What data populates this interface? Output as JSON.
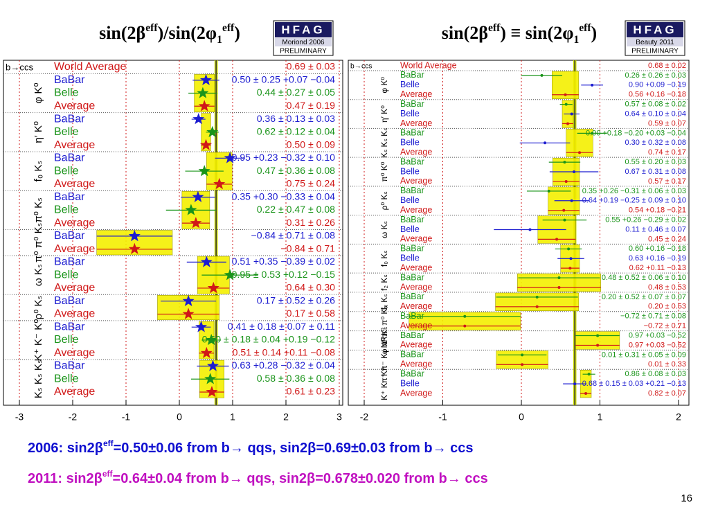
{
  "chart_data": [
    {
      "type": "forest",
      "title": [
        {
          "text": "sin(2β"
        },
        {
          "text": "eff",
          "sup": true
        },
        {
          "text": ")/sin(2φ"
        },
        {
          "text": "1",
          "sub": true
        },
        {
          "text": "eff",
          "sup": true
        },
        {
          "text": ")"
        }
      ],
      "badge": [
        "HFAG",
        "Moriond 2006",
        "PRELIMINARY"
      ],
      "decay_label": "b→ccs",
      "xlim": [
        -3,
        3
      ],
      "xticks": [
        -3,
        -2,
        -1,
        0,
        1,
        2,
        3
      ],
      "colors": {
        "BaBar": "#1c1cd0",
        "Belle": "#1a941a",
        "Average": "#d01818",
        "World Average": "#d01818"
      },
      "world_average": {
        "name": "World Average",
        "value": 0.69,
        "error": 0.03,
        "value_label": "0.69 ± 0.03"
      },
      "groups": [
        {
          "name": "φ K⁰",
          "rows": [
            {
              "name": "BaBar",
              "value": 0.5,
              "error": 0.25,
              "value_label": "0.50 ± 0.25 +0.07 −0.04"
            },
            {
              "name": "Belle",
              "value": 0.44,
              "error": 0.27,
              "value_label": "0.44 ± 0.27 ± 0.05"
            },
            {
              "name": "Average",
              "value": 0.47,
              "error": 0.19,
              "value_label": "0.47 ± 0.19"
            }
          ]
        },
        {
          "name": "η′ K⁰",
          "rows": [
            {
              "name": "BaBar",
              "value": 0.36,
              "error": 0.13,
              "value_label": "0.36 ± 0.13 ± 0.03"
            },
            {
              "name": "Belle",
              "value": 0.62,
              "error": 0.12,
              "value_label": "0.62 ± 0.12 ± 0.04"
            },
            {
              "name": "Average",
              "value": 0.5,
              "error": 0.09,
              "value_label": "0.50 ± 0.09"
            }
          ]
        },
        {
          "name": "f₀ Kₛ",
          "rows": [
            {
              "name": "BaBar",
              "value": 0.95,
              "error": 0.28,
              "value_label": "0.95 +0.23 −0.32 ± 0.10"
            },
            {
              "name": "Belle",
              "value": 0.47,
              "error": 0.36,
              "value_label": "0.47 ± 0.36 ± 0.08"
            },
            {
              "name": "Average",
              "value": 0.75,
              "error": 0.24,
              "value_label": "0.75 ± 0.24"
            }
          ]
        },
        {
          "name": "π⁰ Kₛ",
          "rows": [
            {
              "name": "BaBar",
              "value": 0.35,
              "error": 0.32,
              "value_label": "0.35 +0.30 −0.33 ± 0.04"
            },
            {
              "name": "Belle",
              "value": 0.22,
              "error": 0.47,
              "value_label": "0.22 ± 0.47 ± 0.08"
            },
            {
              "name": "Average",
              "value": 0.31,
              "error": 0.26,
              "value_label": "0.31 ± 0.26"
            }
          ]
        },
        {
          "name": "π⁰ π⁰ Kₛ",
          "rows": [
            {
              "name": "BaBar",
              "value": -0.84,
              "error": 0.71,
              "value_label": "−0.84 ± 0.71 ± 0.08"
            },
            {
              "name": "Average",
              "value": -0.84,
              "error": 0.71,
              "value_label": "−0.84 ± 0.71"
            }
          ]
        },
        {
          "name": "ω Kₛ",
          "rows": [
            {
              "name": "BaBar",
              "value": 0.51,
              "error": 0.37,
              "value_label": "0.51 +0.35 −0.39 ± 0.02"
            },
            {
              "name": "Belle",
              "value": 0.95,
              "error": 0.53,
              "value_label": "0.95 ± 0.53 +0.12 −0.15"
            },
            {
              "name": "Average",
              "value": 0.64,
              "error": 0.3,
              "value_label": "0.64 ± 0.30"
            }
          ]
        },
        {
          "name": "ρ⁰ Kₛ",
          "rows": [
            {
              "name": "BaBar",
              "value": 0.17,
              "error": 0.52,
              "value_label": "0.17 ± 0.52 ± 0.26"
            },
            {
              "name": "Average",
              "value": 0.17,
              "error": 0.58,
              "value_label": "0.17 ± 0.58"
            }
          ]
        },
        {
          "name": "K⁺ K⁻ K⁰",
          "rows": [
            {
              "name": "BaBar",
              "value": 0.41,
              "error": 0.18,
              "value_label": "0.41 ± 0.18 ± 0.07 ± 0.11"
            },
            {
              "name": "Belle",
              "value": 0.6,
              "error": 0.18,
              "value_label": "0.60 ± 0.18 ± 0.04 +0.19 −0.12"
            },
            {
              "name": "Average",
              "value": 0.51,
              "error": 0.14,
              "value_label": "0.51 ± 0.14 +0.11 −0.08"
            }
          ]
        },
        {
          "name": "Kₛ Kₛ Kₛ",
          "rows": [
            {
              "name": "BaBar",
              "value": 0.63,
              "error": 0.3,
              "value_label": "0.63 +0.28 −0.32 ± 0.04"
            },
            {
              "name": "Belle",
              "value": 0.58,
              "error": 0.36,
              "value_label": "0.58 ± 0.36 ± 0.08"
            },
            {
              "name": "Average",
              "value": 0.61,
              "error": 0.23,
              "value_label": "0.61 ± 0.23"
            }
          ]
        }
      ]
    },
    {
      "type": "forest",
      "title": [
        {
          "text": "sin(2β"
        },
        {
          "text": "eff",
          "sup": true
        },
        {
          "text": ") ≡ sin(2φ"
        },
        {
          "text": "1",
          "sub": true
        },
        {
          "text": "eff",
          "sup": true
        },
        {
          "text": ")"
        }
      ],
      "badge": [
        "HFAG",
        "Beauty 2011",
        "PRELIMINARY"
      ],
      "decay_label": "b→ccs",
      "xlim": [
        -2,
        2
      ],
      "xticks": [
        -2,
        -1,
        0,
        1,
        2
      ],
      "colors": {
        "BaBar": "#1a941a",
        "Belle": "#1c1cd0",
        "Average": "#d01818",
        "World Average": "#d01818"
      },
      "world_average": {
        "name": "World Average",
        "value": 0.68,
        "error": 0.02,
        "value_label": "0.68 ± 0.02"
      },
      "groups": [
        {
          "name": "φ K⁰",
          "rows": [
            {
              "name": "BaBar",
              "value": 0.26,
              "error": 0.26,
              "value_label": "0.26 ± 0.26 ± 0.03"
            },
            {
              "name": "Belle",
              "value": 0.9,
              "error": 0.14,
              "value_label": "0.90 +0.09 −0.19"
            },
            {
              "name": "Average",
              "value": 0.56,
              "error": 0.17,
              "value_label": "0.56 +0.16 −0.18"
            }
          ]
        },
        {
          "name": "η′ K⁰",
          "rows": [
            {
              "name": "BaBar",
              "value": 0.57,
              "error": 0.08,
              "value_label": "0.57 ± 0.08 ± 0.02"
            },
            {
              "name": "Belle",
              "value": 0.64,
              "error": 0.1,
              "value_label": "0.64 ± 0.10 ± 0.04"
            },
            {
              "name": "Average",
              "value": 0.59,
              "error": 0.07,
              "value_label": "0.59 ± 0.07"
            }
          ]
        },
        {
          "name": "Kₛ Kₛ Kₛ",
          "rows": [
            {
              "name": "BaBar",
              "value": 0.9,
              "error": 0.19,
              "value_label": "0.90 +0.18 −0.20 +0.03 −0.04"
            },
            {
              "name": "Belle",
              "value": 0.3,
              "error": 0.32,
              "value_label": "0.30 ± 0.32 ± 0.08"
            },
            {
              "name": "Average",
              "value": 0.74,
              "error": 0.17,
              "value_label": "0.74 ± 0.17"
            }
          ]
        },
        {
          "name": "π⁰ K⁰",
          "rows": [
            {
              "name": "BaBar",
              "value": 0.55,
              "error": 0.2,
              "value_label": "0.55 ± 0.20 ± 0.03"
            },
            {
              "name": "Belle",
              "value": 0.67,
              "error": 0.31,
              "value_label": "0.67 ± 0.31 ± 0.08"
            },
            {
              "name": "Average",
              "value": 0.57,
              "error": 0.17,
              "value_label": "0.57 ± 0.17"
            }
          ]
        },
        {
          "name": "ρ⁰ Kₛ",
          "rows": [
            {
              "name": "BaBar",
              "value": 0.35,
              "error": 0.28,
              "value_label": "0.35 +0.26 −0.31 ± 0.06 ± 0.03"
            },
            {
              "name": "Belle",
              "value": 0.64,
              "error": 0.22,
              "value_label": "0.64 +0.19 −0.25 ± 0.09 ± 0.10"
            },
            {
              "name": "Average",
              "value": 0.54,
              "error": 0.2,
              "value_label": "0.54 +0.18 −0.21"
            }
          ]
        },
        {
          "name": "ω Kₛ",
          "rows": [
            {
              "name": "BaBar",
              "value": 0.55,
              "error": 0.28,
              "value_label": "0.55 +0.26 −0.29 ± 0.02"
            },
            {
              "name": "Belle",
              "value": 0.11,
              "error": 0.46,
              "value_label": "0.11 ± 0.46 ± 0.07"
            },
            {
              "name": "Average",
              "value": 0.45,
              "error": 0.24,
              "value_label": "0.45 ± 0.24"
            }
          ]
        },
        {
          "name": "f₀ Kₛ",
          "rows": [
            {
              "name": "BaBar",
              "value": 0.6,
              "error": 0.17,
              "value_label": "0.60 +0.16 −0.18"
            },
            {
              "name": "Belle",
              "value": 0.63,
              "error": 0.17,
              "value_label": "0.63 +0.16 −0.19"
            },
            {
              "name": "Average",
              "value": 0.62,
              "error": 0.12,
              "value_label": "0.62 +0.11 −0.13"
            }
          ]
        },
        {
          "name": "f₂ Kₛ",
          "rows": [
            {
              "name": "BaBar",
              "value": 0.48,
              "error": 0.52,
              "value_label": "0.48 ± 0.52 ± 0.06 ± 0.10"
            },
            {
              "name": "Average",
              "value": 0.48,
              "error": 0.53,
              "value_label": "0.48 ± 0.53"
            }
          ]
        },
        {
          "name": "fₓ Kₛ",
          "rows": [
            {
              "name": "BaBar",
              "value": 0.2,
              "error": 0.52,
              "value_label": "0.20 ± 0.52 ± 0.07 ± 0.07"
            },
            {
              "name": "Average",
              "value": 0.2,
              "error": 0.53,
              "value_label": "0.20 ± 0.53"
            }
          ]
        },
        {
          "name": "π⁰ π⁰ Kₛ",
          "rows": [
            {
              "name": "BaBar",
              "value": -0.72,
              "error": 0.71,
              "value_label": "−0.72 ± 0.71 ± 0.08"
            },
            {
              "name": "Average",
              "value": -0.72,
              "error": 0.71,
              "value_label": "−0.72 ± 0.71"
            }
          ]
        },
        {
          "name": "φ π⁰ Kₛ",
          "rows": [
            {
              "name": "BaBar",
              "value": 0.97,
              "error": 0.28,
              "value_label": "0.97 +0.03 −0.52"
            },
            {
              "name": "Average",
              "value": 0.97,
              "error": 0.28,
              "value_label": "0.97 +0.03 −0.52"
            }
          ]
        },
        {
          "name": "π⁺ π⁻ Kₛ NR",
          "rows": [
            {
              "name": "BaBar",
              "value": 0.01,
              "error": 0.31,
              "value_label": "0.01 ± 0.31 ± 0.05 ± 0.09"
            },
            {
              "name": "Average",
              "value": 0.01,
              "error": 0.33,
              "value_label": "0.01 ± 0.33"
            }
          ]
        },
        {
          "name": "K⁺ K⁻ K⁰",
          "rows": [
            {
              "name": "BaBar",
              "value": 0.86,
              "error": 0.08,
              "value_label": "0.86 ± 0.08 ± 0.03"
            },
            {
              "name": "Belle",
              "value": 0.68,
              "error": 0.15,
              "value_label": "0.68 ± 0.15 ± 0.03 +0.21 −0.13"
            },
            {
              "name": "Average",
              "value": 0.82,
              "error": 0.07,
              "value_label": "0.82 ± 0.07"
            }
          ]
        }
      ]
    }
  ],
  "footer": [
    {
      "color": "#1010d0",
      "segments": [
        {
          "text": "2006: sin2β"
        },
        {
          "text": "eff",
          "sup": true
        },
        {
          "text": "=0.50±0.06 from b→ qqs,  sin2β=0.69±0.03 from b→ ccs"
        }
      ]
    },
    {
      "color": "#c010c0",
      "segments": [
        {
          "text": "2011: sin2β"
        },
        {
          "text": "eff",
          "sup": true
        },
        {
          "text": "=0.64±0.04 from b→ qqs,  sin2β=0.678±0.020 from b→ ccs"
        }
      ]
    }
  ],
  "page_number": "16"
}
